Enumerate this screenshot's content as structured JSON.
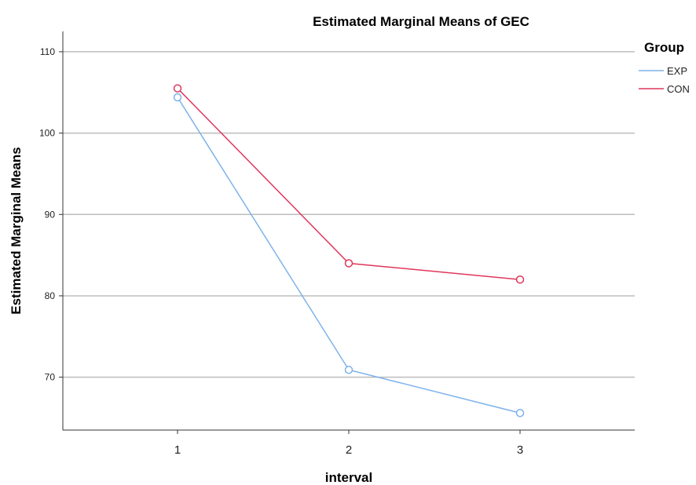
{
  "chart_data": {
    "type": "line",
    "title": "Estimated Marginal Means of GEC",
    "xlabel": "interval",
    "ylabel": "Estimated Marginal Means",
    "categories": [
      "1",
      "2",
      "3"
    ],
    "y_ticks": [
      70,
      80,
      90,
      100,
      110
    ],
    "ylim": [
      63.5,
      112.5
    ],
    "grid": true,
    "legend": {
      "title": "Group",
      "placement": "top-right"
    },
    "series": [
      {
        "name": "EXP",
        "color": "#7fb2ea",
        "values": [
          104.4,
          70.9,
          65.6
        ]
      },
      {
        "name": "CON",
        "color": "#e0365b",
        "values": [
          105.5,
          84.0,
          82.0
        ]
      }
    ]
  }
}
